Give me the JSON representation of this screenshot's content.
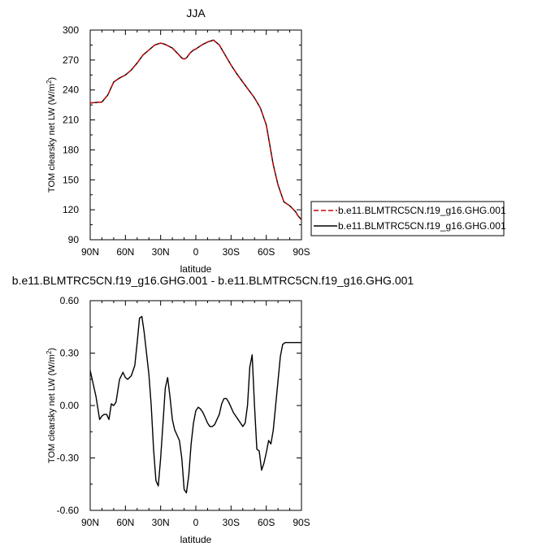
{
  "chart_data": [
    {
      "type": "line",
      "title": "JJA",
      "xlabel": "latitude",
      "ylabel_main": "TOM clearsky net LW (W/m",
      "ylabel_sup": "2",
      "ylabel_close": ")",
      "xlim": [
        90,
        -90
      ],
      "ylim": [
        90,
        300
      ],
      "x_ticks": [
        90,
        60,
        30,
        0,
        -30,
        -60,
        -90
      ],
      "x_tick_labels": [
        "90N",
        "60N",
        "30N",
        "0",
        "30S",
        "60S",
        "90S"
      ],
      "y_ticks": [
        90,
        120,
        150,
        180,
        210,
        240,
        270,
        300
      ],
      "y_tick_labels": [
        "90",
        "120",
        "150",
        "180",
        "210",
        "240",
        "270",
        "300"
      ],
      "legend_position": "right",
      "series": [
        {
          "name": "b.e11.BLMTRC5CN.f19_g16.GHG.001",
          "color": "#cc0000",
          "dash": "dashed",
          "x": [
            90,
            80,
            75,
            70,
            65,
            60,
            55,
            50,
            45,
            40,
            35,
            30,
            27,
            25,
            20,
            15,
            12,
            10,
            8,
            5,
            2,
            0,
            -5,
            -10,
            -15,
            -20,
            -25,
            -30,
            -35,
            -40,
            -45,
            -50,
            -55,
            -60,
            -63,
            -66,
            -70,
            -75,
            -80,
            -85,
            -87,
            -90
          ],
          "y": [
            227,
            228,
            235,
            248,
            252,
            255,
            260,
            267,
            275,
            280,
            285,
            287,
            286,
            285,
            282,
            276,
            272,
            271,
            272,
            277,
            280,
            281,
            285,
            288,
            290,
            285,
            275,
            265,
            256,
            248,
            240,
            232,
            222,
            205,
            185,
            165,
            145,
            128,
            124,
            118,
            114,
            110
          ]
        },
        {
          "name": "b.e11.BLMTRC5CN.f19_g16.GHG.001",
          "color": "#000000",
          "dash": "solid",
          "x": [
            90,
            80,
            75,
            70,
            65,
            60,
            55,
            50,
            45,
            40,
            35,
            30,
            27,
            25,
            20,
            15,
            12,
            10,
            8,
            5,
            2,
            0,
            -5,
            -10,
            -15,
            -20,
            -25,
            -30,
            -35,
            -40,
            -45,
            -50,
            -55,
            -60,
            -63,
            -66,
            -70,
            -75,
            -80,
            -85,
            -87,
            -90
          ],
          "y": [
            227,
            228,
            235,
            248,
            252,
            255,
            260,
            267,
            275,
            280,
            285,
            287,
            286,
            285,
            282,
            276,
            272,
            271,
            272,
            277,
            280,
            281,
            285,
            288,
            290,
            285,
            275,
            265,
            256,
            248,
            240,
            232,
            222,
            205,
            185,
            165,
            145,
            128,
            124,
            118,
            114,
            110
          ]
        }
      ]
    },
    {
      "type": "line",
      "title": "b.e11.BLMTRC5CN.f19_g16.GHG.001 - b.e11.BLMTRC5CN.f19_g16.GHG.001",
      "xlabel": "latitude",
      "ylabel_main": "TOM clearsky net LW (W/m",
      "ylabel_sup": "2",
      "ylabel_close": ")",
      "xlim": [
        90,
        -90
      ],
      "ylim": [
        -0.6,
        0.6
      ],
      "x_ticks": [
        90,
        60,
        30,
        0,
        -30,
        -60,
        -90
      ],
      "x_tick_labels": [
        "90N",
        "60N",
        "30N",
        "0",
        "30S",
        "60S",
        "90S"
      ],
      "y_ticks": [
        -0.6,
        -0.3,
        0.0,
        0.3,
        0.6
      ],
      "y_tick_labels": [
        "-0.60",
        "-0.30",
        "0.00",
        "0.30",
        "0.60"
      ],
      "series": [
        {
          "color": "#000000",
          "dash": "solid",
          "x": [
            90,
            88,
            85,
            82,
            80,
            78,
            76,
            74,
            72,
            70,
            68,
            65,
            62,
            60,
            58,
            55,
            52,
            50,
            48,
            46,
            44,
            42,
            40,
            38,
            36,
            34,
            32,
            30,
            28,
            26,
            24,
            22,
            20,
            18,
            16,
            14,
            12,
            10,
            8,
            6,
            4,
            2,
            0,
            -2,
            -4,
            -6,
            -8,
            -10,
            -12,
            -14,
            -16,
            -18,
            -20,
            -22,
            -24,
            -26,
            -28,
            -30,
            -32,
            -34,
            -36,
            -38,
            -40,
            -42,
            -44,
            -46,
            -48,
            -50,
            -52,
            -54,
            -56,
            -58,
            -60,
            -62,
            -64,
            -66,
            -68,
            -70,
            -72,
            -74,
            -76,
            -78,
            -80,
            -82,
            -84,
            -86,
            -88,
            -90
          ],
          "y": [
            0.2,
            0.14,
            0.05,
            -0.08,
            -0.06,
            -0.05,
            -0.05,
            -0.08,
            0.01,
            0.0,
            0.02,
            0.15,
            0.19,
            0.16,
            0.15,
            0.17,
            0.23,
            0.36,
            0.5,
            0.51,
            0.42,
            0.3,
            0.18,
            0.0,
            -0.25,
            -0.43,
            -0.46,
            -0.3,
            -0.1,
            0.1,
            0.16,
            0.05,
            -0.08,
            -0.14,
            -0.17,
            -0.2,
            -0.3,
            -0.48,
            -0.5,
            -0.4,
            -0.22,
            -0.1,
            -0.03,
            -0.01,
            -0.02,
            -0.04,
            -0.07,
            -0.1,
            -0.12,
            -0.12,
            -0.11,
            -0.08,
            -0.05,
            0.01,
            0.04,
            0.04,
            0.02,
            -0.01,
            -0.04,
            -0.06,
            -0.08,
            -0.1,
            -0.12,
            -0.1,
            0.0,
            0.22,
            0.29,
            0.0,
            -0.25,
            -0.26,
            -0.37,
            -0.33,
            -0.27,
            -0.2,
            -0.22,
            -0.14,
            0.0,
            0.14,
            0.28,
            0.35,
            0.36,
            0.36,
            0.36,
            0.36,
            0.36,
            0.36,
            0.36,
            0.36
          ]
        }
      ]
    }
  ]
}
